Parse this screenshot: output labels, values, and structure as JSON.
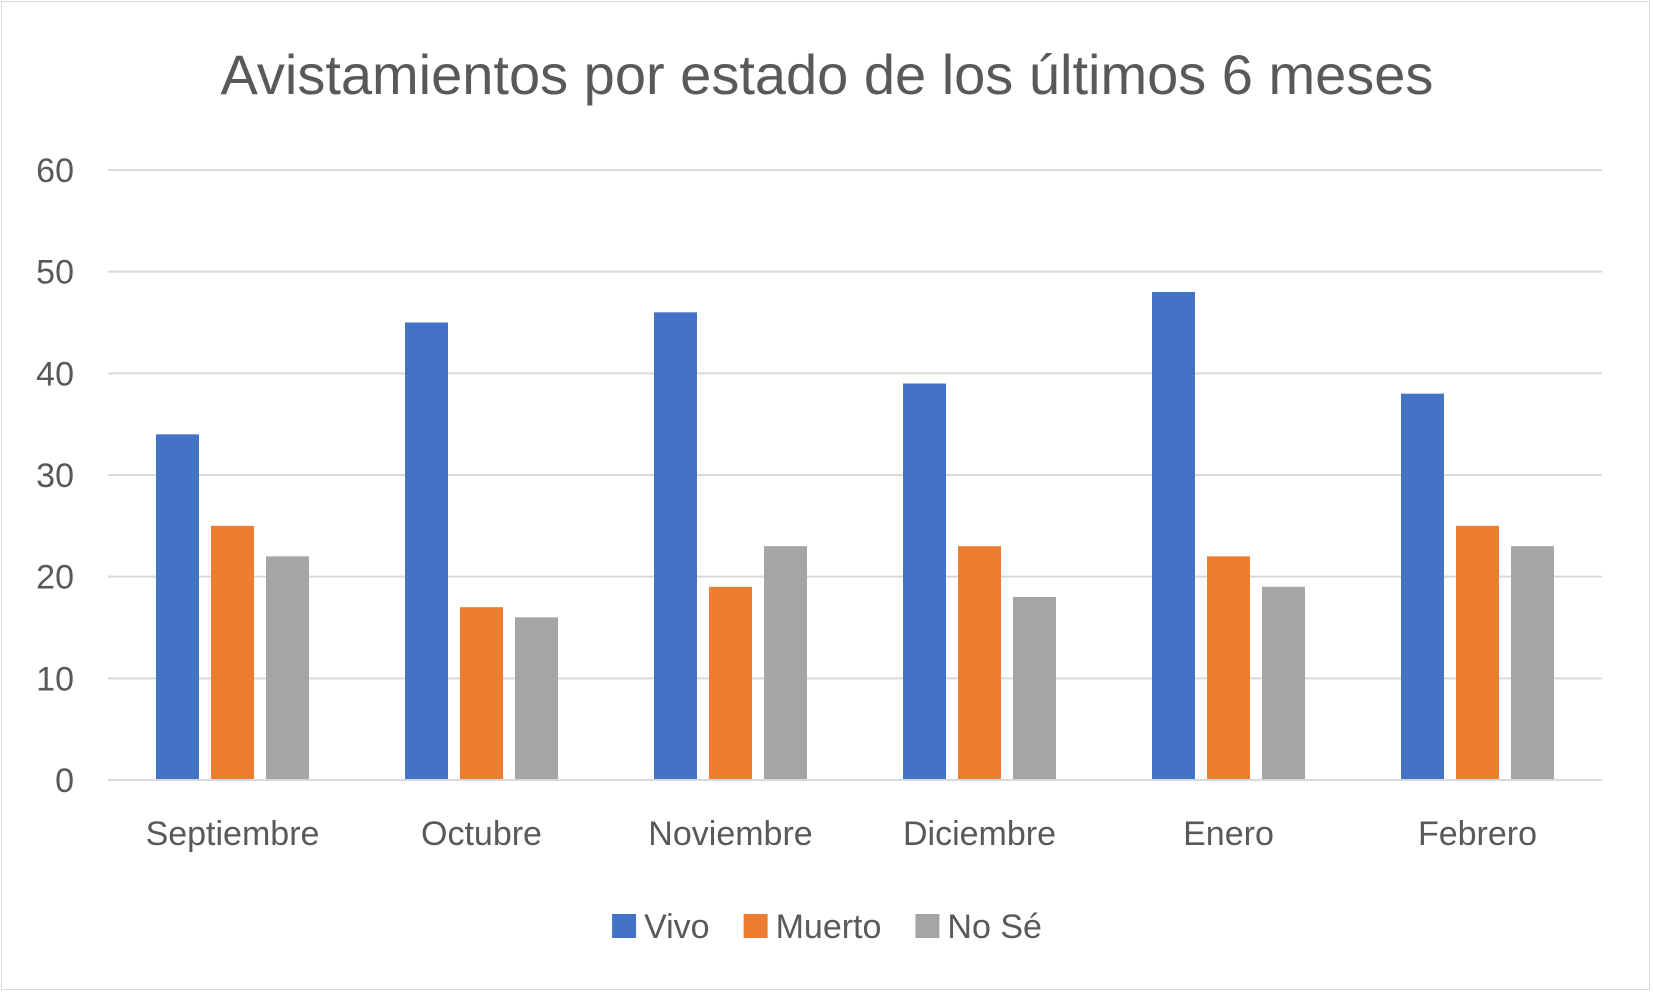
{
  "chart_data": {
    "type": "bar",
    "title": "Avistamientos por estado de los últimos 6 meses",
    "xlabel": "",
    "ylabel": "",
    "categories": [
      "Septiembre",
      "Octubre",
      "Noviembre",
      "Diciembre",
      "Enero",
      "Febrero"
    ],
    "series": [
      {
        "name": "Vivo",
        "color": "#4472c4",
        "values": [
          34,
          45,
          46,
          39,
          48,
          38
        ]
      },
      {
        "name": "Muerto",
        "color": "#ed7d31",
        "values": [
          25,
          17,
          19,
          23,
          22,
          25
        ]
      },
      {
        "name": "No Sé",
        "color": "#a5a5a5",
        "values": [
          22,
          16,
          23,
          18,
          19,
          23
        ]
      }
    ],
    "ylim": [
      0,
      60
    ],
    "yticks": [
      "0",
      "10",
      "20",
      "30",
      "40",
      "50",
      "60"
    ],
    "grid": true,
    "legend_position": "bottom",
    "gridline_color": "#d9d9d9",
    "text_color": "#595959"
  }
}
